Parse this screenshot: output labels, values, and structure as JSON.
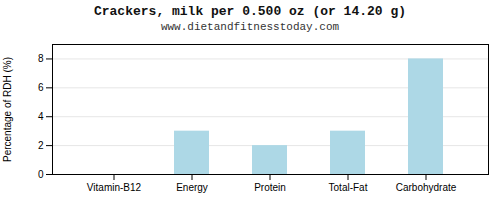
{
  "chart_data": {
    "type": "bar",
    "title": "Crackers, milk per 0.500 oz (or 14.20 g)",
    "subtitle": "www.dietandfitnesstoday.com",
    "categories": [
      "Vitamin-B12",
      "Energy",
      "Protein",
      "Total-Fat",
      "Carbohydrate"
    ],
    "values": [
      0,
      3,
      2,
      3,
      8
    ],
    "color": "#add8e6",
    "ylabel": "Percentage of RDH (%)",
    "ylim": [
      0,
      9
    ],
    "yticks": [
      0,
      2,
      4,
      6,
      8
    ],
    "grid": true
  }
}
